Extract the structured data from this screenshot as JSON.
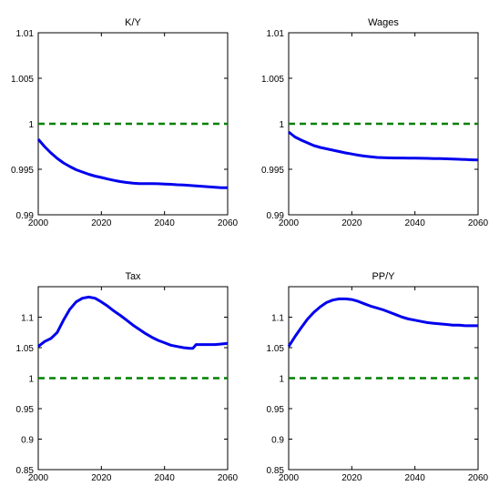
{
  "chart_data": [
    {
      "type": "line",
      "title": "K/Y",
      "xlim": [
        2000,
        2060
      ],
      "ylim": [
        0.99,
        1.01
      ],
      "xticks": [
        2000,
        2020,
        2040,
        2060
      ],
      "yticks": [
        0.99,
        0.995,
        1,
        1.005,
        1.01
      ],
      "xtick_labels": [
        "2000",
        "2020",
        "2040",
        "2060"
      ],
      "ytick_labels": [
        "0.99",
        "0.995",
        "1",
        "1.005",
        "1.01"
      ],
      "grid": false,
      "series": [
        {
          "style": "solid",
          "color": "#0000ee",
          "x": [
            2000,
            2002,
            2004,
            2006,
            2008,
            2010,
            2012,
            2014,
            2016,
            2018,
            2020,
            2022,
            2024,
            2026,
            2028,
            2030,
            2032,
            2034,
            2036,
            2038,
            2040,
            2042,
            2044,
            2046,
            2048,
            2050,
            2052,
            2054,
            2056,
            2058,
            2060
          ],
          "y": [
            0.9983,
            0.9975,
            0.9968,
            0.9962,
            0.9957,
            0.9953,
            0.99495,
            0.9947,
            0.99445,
            0.99425,
            0.9941,
            0.99393,
            0.99378,
            0.99365,
            0.99355,
            0.99348,
            0.99343,
            0.99342,
            0.99342,
            0.99341,
            0.99338,
            0.99335,
            0.9933,
            0.99327,
            0.99323,
            0.99318,
            0.99312,
            0.99307,
            0.99302,
            0.99298,
            0.99298
          ]
        },
        {
          "style": "dashed",
          "color": "#008000",
          "x": [
            2000,
            2060
          ],
          "y": [
            1,
            1
          ]
        }
      ]
    },
    {
      "type": "line",
      "title": "Wages",
      "xlim": [
        2000,
        2060
      ],
      "ylim": [
        0.99,
        1.01
      ],
      "xticks": [
        2000,
        2020,
        2040,
        2060
      ],
      "yticks": [
        0.99,
        0.995,
        1,
        1.005,
        1.01
      ],
      "xtick_labels": [
        "2000",
        "2020",
        "2040",
        "2060"
      ],
      "ytick_labels": [
        "0.99",
        "0.995",
        "1",
        "1.005",
        "1.01"
      ],
      "grid": false,
      "series": [
        {
          "style": "solid",
          "color": "#0000ee",
          "x": [
            2000,
            2002,
            2004,
            2006,
            2008,
            2010,
            2012,
            2014,
            2016,
            2018,
            2020,
            2022,
            2024,
            2026,
            2028,
            2030,
            2032,
            2034,
            2036,
            2038,
            2040,
            2042,
            2044,
            2046,
            2048,
            2050,
            2052,
            2054,
            2056,
            2058,
            2060
          ],
          "y": [
            0.9991,
            0.99855,
            0.9982,
            0.9979,
            0.9976,
            0.9974,
            0.99725,
            0.9971,
            0.99695,
            0.9968,
            0.99668,
            0.99655,
            0.99645,
            0.99637,
            0.9963,
            0.99627,
            0.99625,
            0.99624,
            0.99624,
            0.99623,
            0.99622,
            0.99621,
            0.9962,
            0.99618,
            0.99617,
            0.99615,
            0.99612,
            0.9961,
            0.99607,
            0.99604,
            0.99602
          ]
        },
        {
          "style": "dashed",
          "color": "#008000",
          "x": [
            2000,
            2060
          ],
          "y": [
            1,
            1
          ]
        }
      ]
    },
    {
      "type": "line",
      "title": "Tax",
      "xlim": [
        2000,
        2060
      ],
      "ylim": [
        0.85,
        1.15
      ],
      "xticks": [
        2000,
        2020,
        2040,
        2060
      ],
      "yticks": [
        0.85,
        0.9,
        0.95,
        1,
        1.05,
        1.1
      ],
      "xtick_labels": [
        "2000",
        "2020",
        "2040",
        "2060"
      ],
      "ytick_labels": [
        "0.85",
        "0.9",
        "0.95",
        "1",
        "1.05",
        "1.1"
      ],
      "grid": false,
      "series": [
        {
          "style": "solid",
          "color": "#0000ee",
          "x": [
            2000,
            2002,
            2004,
            2006,
            2008,
            2010,
            2012,
            2014,
            2016,
            2018,
            2020,
            2022,
            2024,
            2026,
            2028,
            2030,
            2032,
            2034,
            2036,
            2038,
            2040,
            2042,
            2044,
            2046,
            2048,
            2049,
            2050,
            2052,
            2054,
            2056,
            2058,
            2060
          ],
          "y": [
            1.052,
            1.06,
            1.065,
            1.075,
            1.095,
            1.113,
            1.125,
            1.131,
            1.133,
            1.131,
            1.125,
            1.118,
            1.11,
            1.103,
            1.095,
            1.087,
            1.08,
            1.073,
            1.067,
            1.062,
            1.058,
            1.054,
            1.052,
            1.05,
            1.049,
            1.049,
            1.055,
            1.055,
            1.055,
            1.055,
            1.056,
            1.057
          ]
        },
        {
          "style": "dashed",
          "color": "#008000",
          "x": [
            2000,
            2060
          ],
          "y": [
            1,
            1
          ]
        }
      ]
    },
    {
      "type": "line",
      "title": "PP/Y",
      "xlim": [
        2000,
        2060
      ],
      "ylim": [
        0.85,
        1.15
      ],
      "xticks": [
        2000,
        2020,
        2040,
        2060
      ],
      "yticks": [
        0.85,
        0.9,
        0.95,
        1,
        1.05,
        1.1
      ],
      "xtick_labels": [
        "2000",
        "2020",
        "2040",
        "2060"
      ],
      "ytick_labels": [
        "0.85",
        "0.9",
        "0.95",
        "1",
        "1.05",
        "1.1"
      ],
      "grid": false,
      "series": [
        {
          "style": "solid",
          "color": "#0000ee",
          "x": [
            2000,
            2002,
            2004,
            2006,
            2008,
            2010,
            2012,
            2014,
            2016,
            2018,
            2020,
            2022,
            2024,
            2026,
            2028,
            2030,
            2032,
            2034,
            2036,
            2038,
            2040,
            2042,
            2044,
            2046,
            2048,
            2050,
            2052,
            2054,
            2056,
            2058,
            2060
          ],
          "y": [
            1.052,
            1.068,
            1.083,
            1.097,
            1.108,
            1.117,
            1.124,
            1.128,
            1.13,
            1.13,
            1.129,
            1.126,
            1.122,
            1.118,
            1.115,
            1.112,
            1.108,
            1.104,
            1.1,
            1.097,
            1.095,
            1.093,
            1.091,
            1.09,
            1.089,
            1.088,
            1.087,
            1.087,
            1.086,
            1.086,
            1.086
          ]
        },
        {
          "style": "dashed",
          "color": "#008000",
          "x": [
            2000,
            2060
          ],
          "y": [
            1,
            1
          ]
        }
      ]
    }
  ]
}
